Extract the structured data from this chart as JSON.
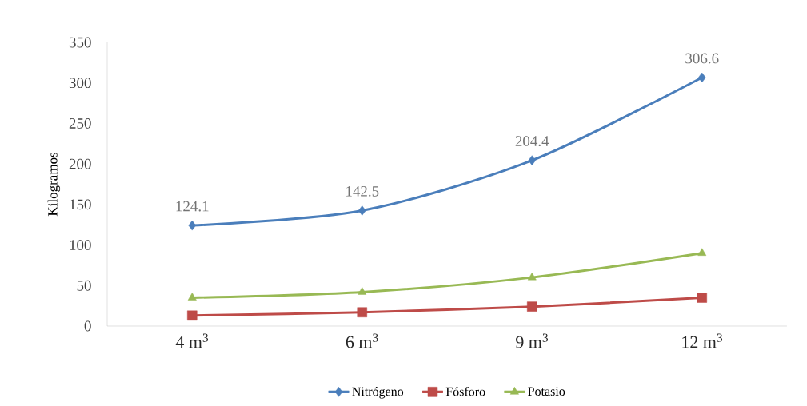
{
  "chart_data": {
    "type": "line",
    "ylabel": "Kilogramos",
    "categories": [
      "4 m$^{3}$",
      "6 m$^{3}$",
      "9 m$^{3}$",
      "12 m$^{3}$"
    ],
    "series": [
      {
        "name": "Nitrógeno",
        "color": "#4a7ebb",
        "marker": "diamond",
        "values": [
          124.1,
          142.5,
          204.4,
          306.6
        ],
        "value_labels": [
          "124.1",
          "142.5",
          "204.4",
          "306.6"
        ]
      },
      {
        "name": "Fósforo",
        "color": "#be4b48",
        "marker": "square",
        "values": [
          13,
          17,
          24,
          35
        ]
      },
      {
        "name": "Potasio",
        "color": "#98b954",
        "marker": "triangle",
        "values": [
          35,
          42,
          60,
          90
        ]
      }
    ],
    "ylim": [
      0,
      350
    ],
    "yticks": [
      0,
      50,
      100,
      150,
      200,
      250,
      300,
      350
    ],
    "grid": false,
    "legend": "bottom",
    "line_style": "solid"
  }
}
